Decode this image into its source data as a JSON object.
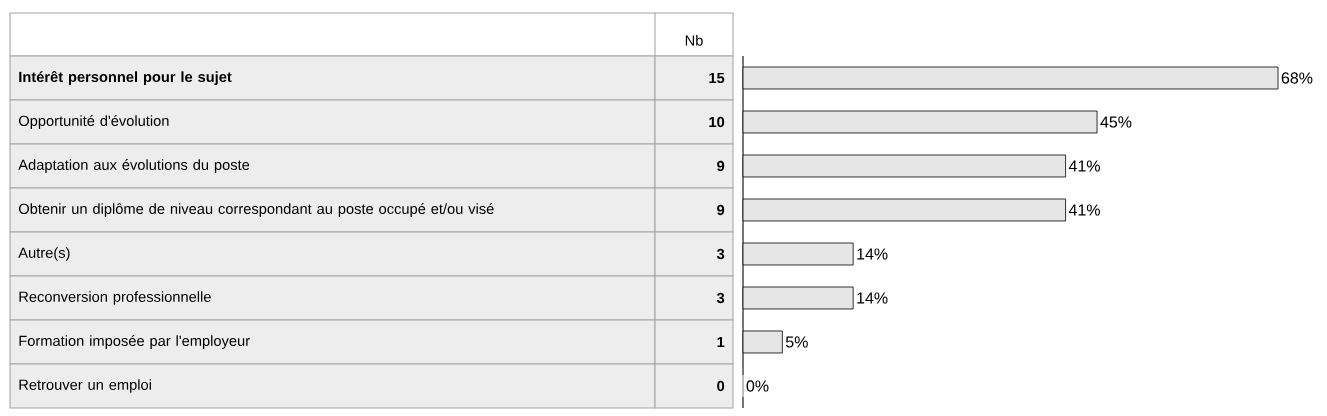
{
  "chart_data": {
    "type": "bar",
    "orientation": "horizontal",
    "categories": [
      "Intérêt personnel pour le sujet",
      "Opportunité d'évolution",
      "Adaptation aux évolutions du poste",
      "Obtenir un diplôme de niveau correspondant au poste occupé et/ou visé",
      "Autre(s)",
      "Reconversion professionnelle",
      "Formation imposée par l'employeur",
      "Retrouver un emploi"
    ],
    "values": [
      68,
      45,
      41,
      41,
      14,
      14,
      5,
      0
    ],
    "value_labels": [
      "68%",
      "45%",
      "41%",
      "41%",
      "14%",
      "14%",
      "5%",
      "0%"
    ],
    "color": "#e6e6e6",
    "annotations": [
      "Nb",
      "15",
      "10",
      "9",
      "9",
      "3",
      "3",
      "1",
      "0"
    ]
  }
}
